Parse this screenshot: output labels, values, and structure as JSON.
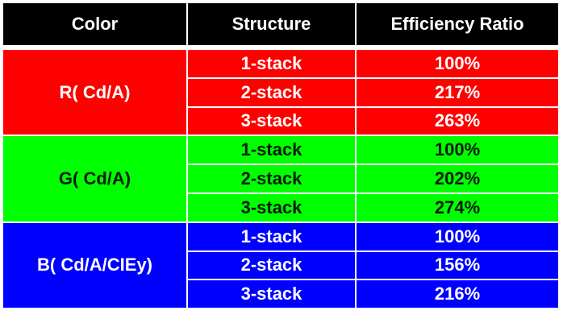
{
  "table": {
    "header": [
      "Color",
      "Structure",
      "Efficiency Ratio"
    ],
    "groups": [
      {
        "label": "R( Cd/A)",
        "rows": [
          [
            "1-stack",
            "100%"
          ],
          [
            "2-stack",
            "217%"
          ],
          [
            "3-stack",
            "263%"
          ]
        ]
      },
      {
        "label": "G( Cd/A)",
        "rows": [
          [
            "1-stack",
            "100%"
          ],
          [
            "2-stack",
            "202%"
          ],
          [
            "3-stack",
            "274%"
          ]
        ]
      },
      {
        "label": "B( Cd/A/CIEy)",
        "rows": [
          [
            "1-stack",
            "100%"
          ],
          [
            "2-stack",
            "156%"
          ],
          [
            "3-stack",
            "216%"
          ]
        ]
      }
    ]
  }
}
